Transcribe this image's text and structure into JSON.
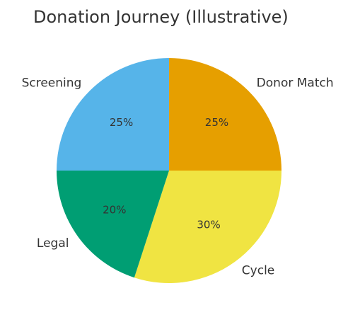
{
  "chart_data": {
    "type": "pie",
    "title": "Donation Journey (Illustrative)",
    "categories": [
      "Donor Match",
      "Cycle",
      "Legal",
      "Screening"
    ],
    "values": [
      25,
      30,
      20,
      25
    ],
    "value_labels": [
      "25%",
      "30%",
      "20%",
      "25%"
    ],
    "colors": [
      "#E69F00",
      "#F0E442",
      "#009E73",
      "#56B4E9"
    ]
  }
}
